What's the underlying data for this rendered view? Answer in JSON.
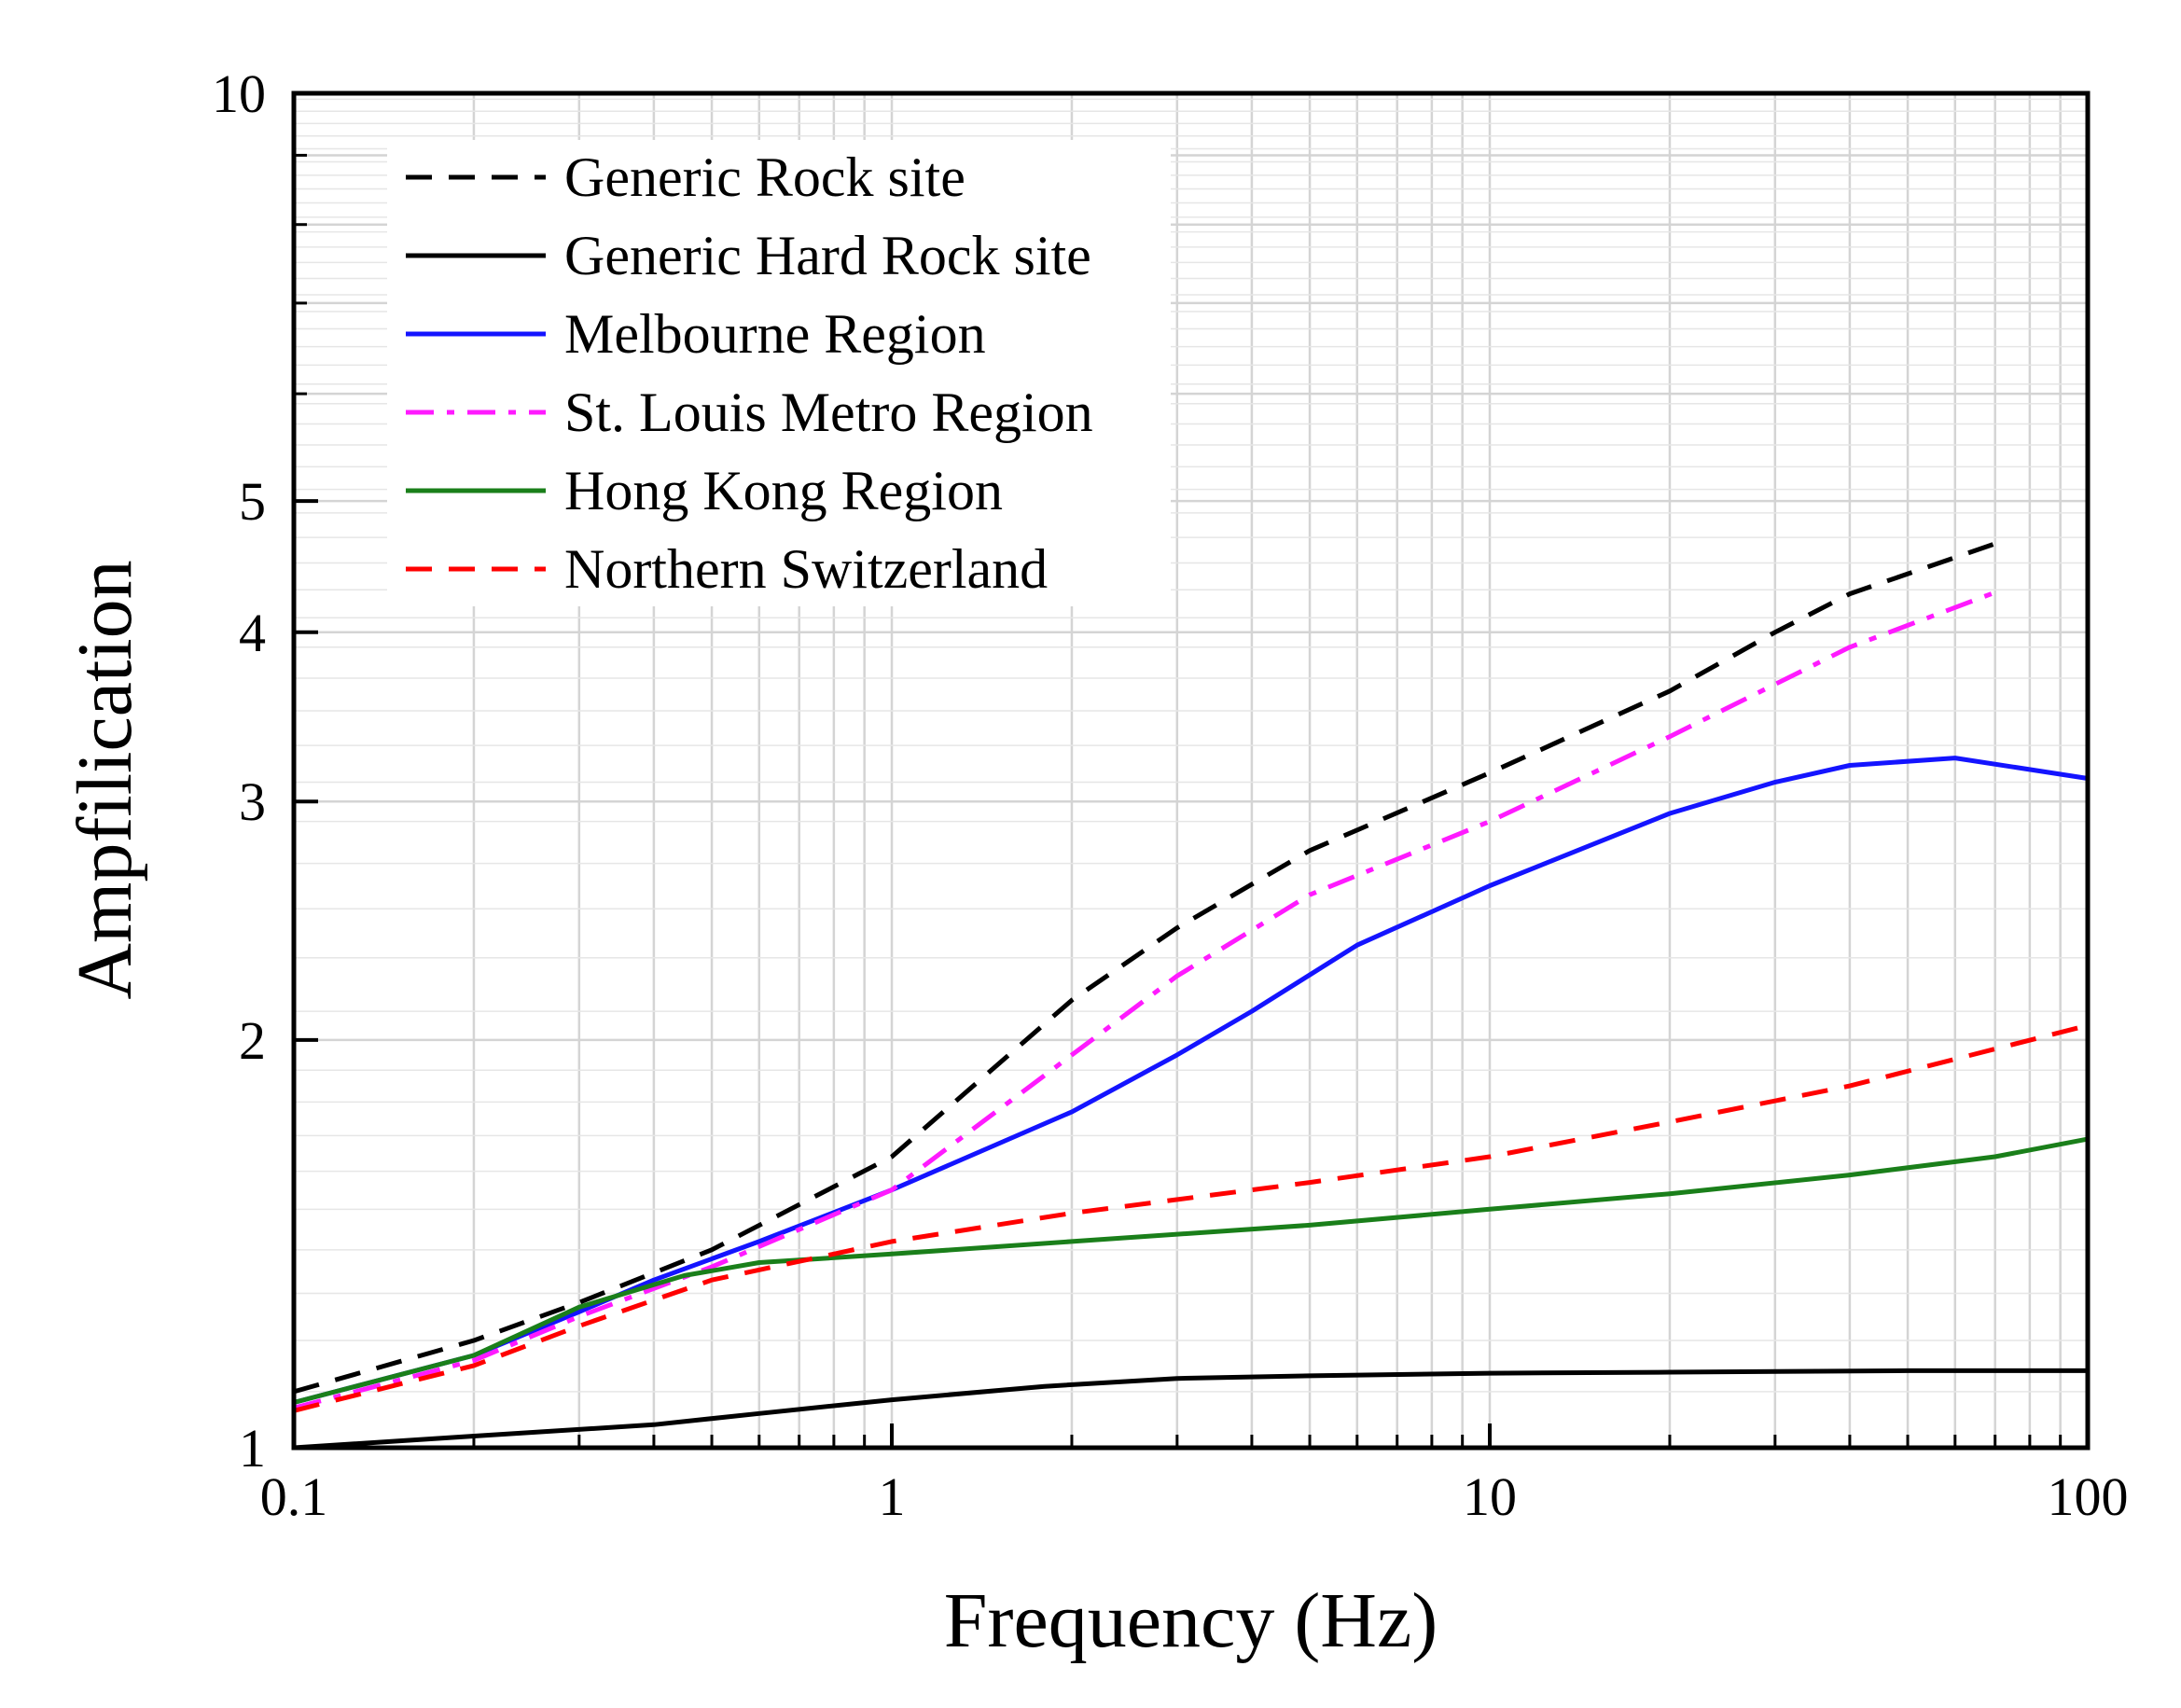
{
  "chart_data": {
    "type": "line",
    "title": "",
    "xlabel": "Frequency (Hz)",
    "ylabel": "Ampfilication",
    "xscale": "log",
    "yscale": "log",
    "xlim": [
      0.1,
      100
    ],
    "ylim": [
      1,
      10
    ],
    "grid": true,
    "legend_position": "top-left",
    "x_ticks": [
      {
        "value": 0.1,
        "label": "0.1"
      },
      {
        "value": 1,
        "label": "1"
      },
      {
        "value": 10,
        "label": "10"
      },
      {
        "value": 100,
        "label": "100"
      }
    ],
    "y_ticks": [
      {
        "value": 1,
        "label": "1"
      },
      {
        "value": 2,
        "label": "2"
      },
      {
        "value": 3,
        "label": "3"
      },
      {
        "value": 4,
        "label": "4"
      },
      {
        "value": 5,
        "label": "5"
      },
      {
        "value": 10,
        "label": "10"
      }
    ],
    "series": [
      {
        "name": "Generic Rock site",
        "color": "#000000",
        "dash": "dashed",
        "x": [
          0.1,
          0.2,
          0.3,
          0.5,
          1,
          2,
          3,
          5,
          10,
          20,
          30,
          40,
          70
        ],
        "y": [
          1.1,
          1.2,
          1.28,
          1.4,
          1.64,
          2.14,
          2.42,
          2.76,
          3.15,
          3.62,
          4.0,
          4.27,
          4.65
        ]
      },
      {
        "name": "Generic Hard Rock site",
        "color": "#000000",
        "dash": "solid",
        "x": [
          0.1,
          0.2,
          0.4,
          0.6,
          1,
          1.8,
          3,
          5,
          10,
          20,
          50,
          100
        ],
        "y": [
          1.0,
          1.02,
          1.04,
          1.06,
          1.085,
          1.11,
          1.125,
          1.13,
          1.135,
          1.137,
          1.14,
          1.14
        ]
      },
      {
        "name": "Melbourne Region",
        "color": "#1414ff",
        "dash": "solid",
        "x": [
          0.1,
          0.2,
          0.3,
          0.4,
          0.6,
          1,
          2,
          3,
          4,
          6,
          10,
          20,
          30,
          40,
          60,
          100
        ],
        "y": [
          1.08,
          1.17,
          1.26,
          1.33,
          1.42,
          1.55,
          1.77,
          1.95,
          2.1,
          2.35,
          2.6,
          2.94,
          3.1,
          3.19,
          3.23,
          3.12
        ]
      },
      {
        "name": "St. Louis Metro Region",
        "color": "#ff1aff",
        "dash": "dash-dot",
        "x": [
          0.1,
          0.2,
          0.3,
          0.5,
          1,
          2,
          3,
          5,
          10,
          20,
          40,
          70
        ],
        "y": [
          1.07,
          1.16,
          1.25,
          1.36,
          1.55,
          1.95,
          2.23,
          2.56,
          2.9,
          3.35,
          3.9,
          4.28
        ]
      },
      {
        "name": "Hong Kong Region",
        "color": "#1a7f1a",
        "dash": "solid",
        "x": [
          0.1,
          0.2,
          0.3,
          0.45,
          0.6,
          1,
          2,
          5,
          10,
          20,
          40,
          70,
          100
        ],
        "y": [
          1.08,
          1.17,
          1.27,
          1.34,
          1.37,
          1.39,
          1.42,
          1.46,
          1.5,
          1.54,
          1.59,
          1.64,
          1.69
        ]
      },
      {
        "name": "Northern Switzerland",
        "color": "#ff0000",
        "dash": "dashed",
        "x": [
          0.1,
          0.2,
          0.3,
          0.5,
          0.8,
          1,
          2,
          5,
          10,
          20,
          40,
          100
        ],
        "y": [
          1.065,
          1.15,
          1.23,
          1.33,
          1.39,
          1.42,
          1.49,
          1.57,
          1.64,
          1.74,
          1.85,
          2.05
        ]
      }
    ]
  }
}
